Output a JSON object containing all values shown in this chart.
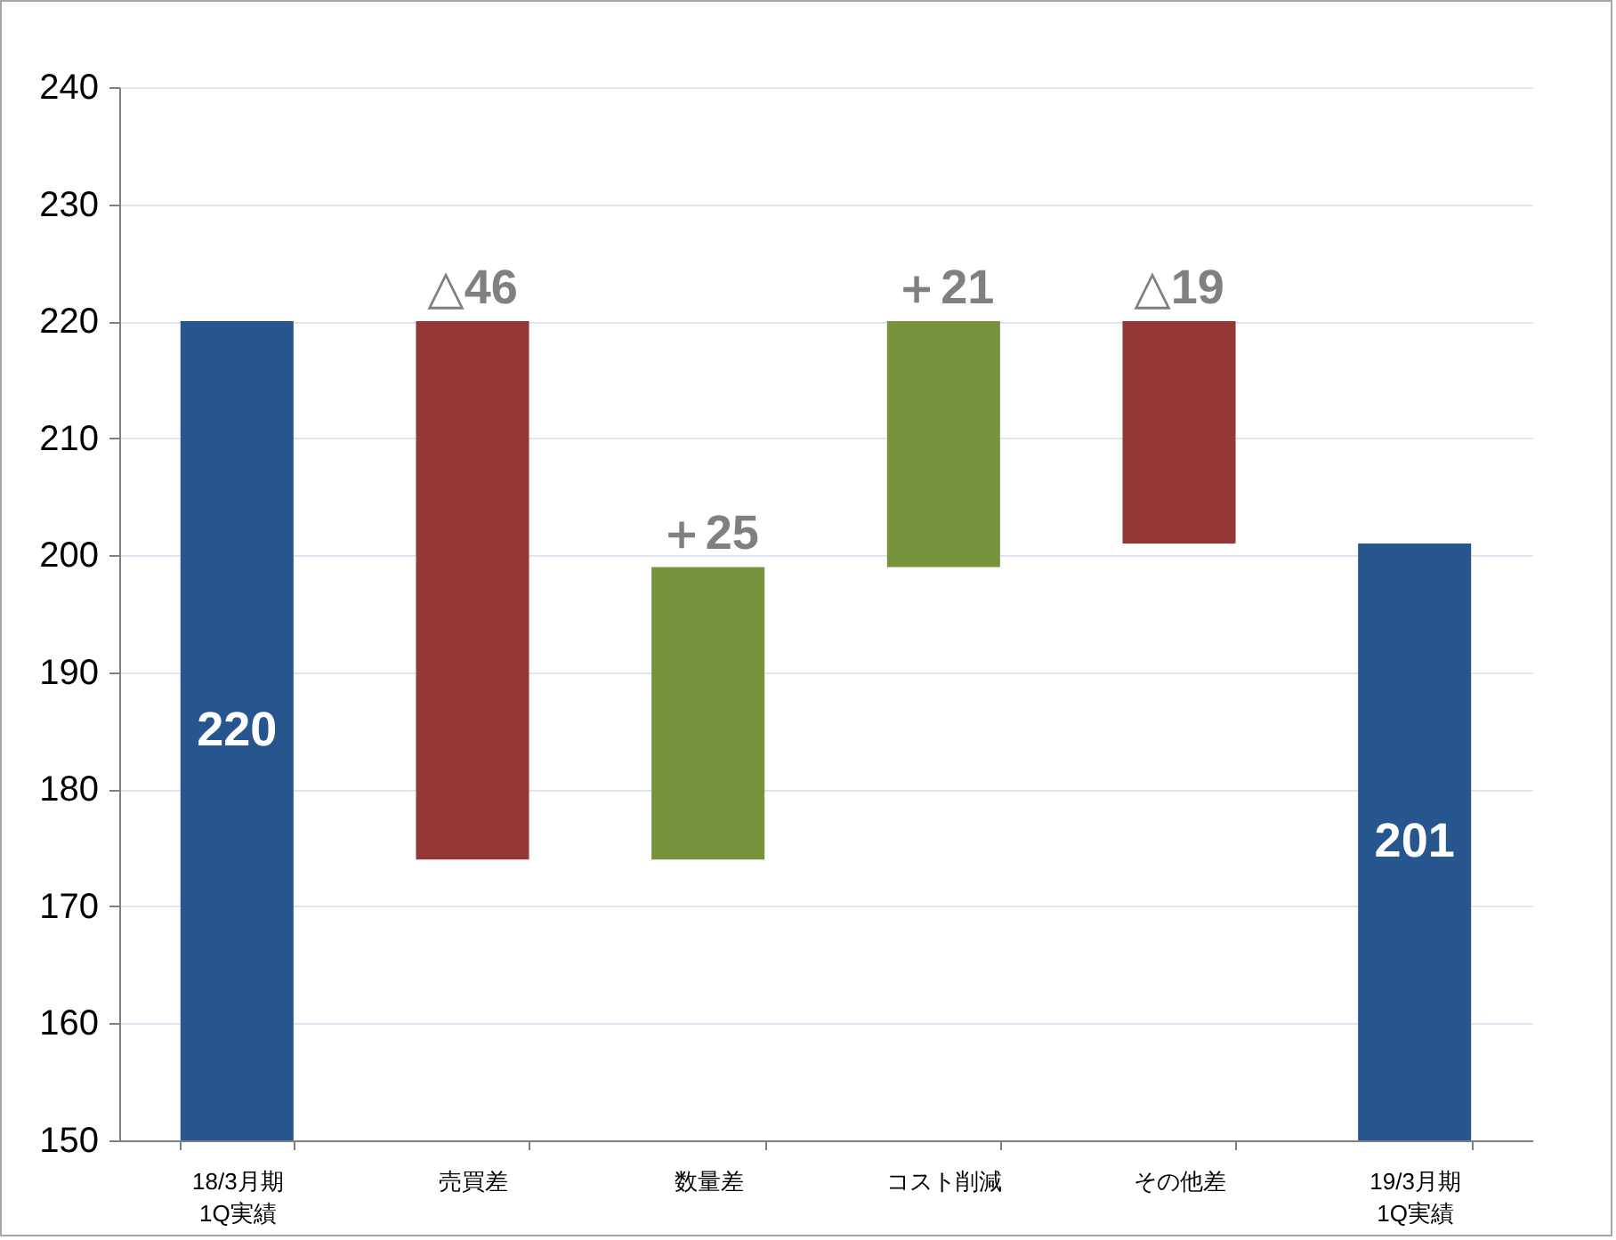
{
  "chart_data": {
    "type": "bar",
    "categories": [
      "18/3月期\n1Q実績",
      "売買差",
      "数量差",
      "コスト削減",
      "その他差",
      "19/3月期\n1Q実績"
    ],
    "values": [
      220,
      -46,
      25,
      21,
      -19,
      201
    ],
    "base": [
      null,
      220,
      174,
      199,
      220,
      null
    ],
    "colors": [
      "#27568f",
      "#953735",
      "#77933c",
      "#77933c",
      "#953735",
      "#27568f"
    ],
    "value_labels": [
      "220",
      "△46",
      "＋25",
      "＋21",
      "△19",
      "201"
    ],
    "ylim": [
      150,
      240
    ],
    "yticks": [
      150,
      160,
      170,
      180,
      190,
      200,
      210,
      220,
      230,
      240
    ],
    "grid": "y"
  }
}
